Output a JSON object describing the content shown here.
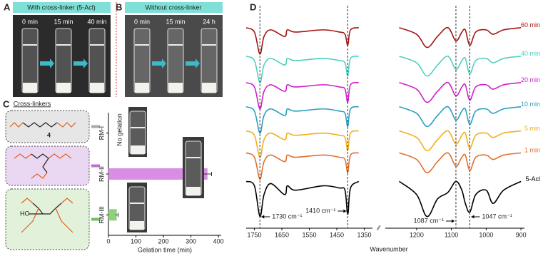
{
  "panels": {
    "A": {
      "label": "A",
      "banner": "With cross-linker (5-Acl)",
      "times": [
        "0 min",
        "15 min",
        "40 min"
      ]
    },
    "B": {
      "label": "B",
      "banner": "Without cross-linker",
      "times": [
        "0 min",
        "15 min",
        "24 h"
      ]
    },
    "C": {
      "label": "C",
      "heading": "Cross-linkers",
      "subscript": "4",
      "hydroxyl": "HO"
    },
    "D": {
      "label": "D",
      "xlabel": "Wavenumber"
    }
  },
  "chart_data": [
    {
      "type": "bar",
      "orientation": "horizontal",
      "categories": [
        "RM-I",
        "RM-II",
        "RM-III"
      ],
      "values": [
        null,
        360,
        30
      ],
      "errors": [
        null,
        15,
        5
      ],
      "colors": [
        null,
        "#d88ee2",
        "#8fd07a"
      ],
      "annotation": "No gelation",
      "xlabel": "Gelation time (min)",
      "xlim": [
        0,
        410
      ],
      "xticks": [
        0,
        100,
        200,
        300,
        400
      ]
    },
    {
      "type": "line",
      "x": [
        1780,
        1750,
        1730,
        1715,
        1690,
        1640,
        1630,
        1600,
        1500,
        1440,
        1420,
        1410,
        1400,
        1370
      ],
      "xlim": [
        1780,
        1320
      ],
      "xticks": [
        1750,
        1650,
        1550,
        1450,
        1350
      ],
      "ylim": [
        0,
        100
      ],
      "series": [
        {
          "color": "#a31515",
          "values": [
            90,
            88,
            78,
            86,
            89,
            86,
            89,
            88,
            89,
            88,
            87,
            82,
            89,
            90
          ]
        },
        {
          "color": "#4fd0c0",
          "values": [
            77,
            75,
            65,
            73,
            76,
            73,
            76,
            75,
            76,
            75,
            74,
            68,
            76,
            77
          ]
        },
        {
          "color": "#d020c8",
          "values": [
            65,
            63,
            53,
            61,
            64,
            61,
            64,
            63,
            64,
            63,
            62,
            56,
            64,
            65
          ]
        },
        {
          "color": "#2aa0c0",
          "values": [
            54,
            52,
            42,
            50,
            53,
            50,
            53,
            52,
            53,
            52,
            51,
            45,
            53,
            54
          ]
        },
        {
          "color": "#f0b020",
          "values": [
            43,
            41,
            31,
            39,
            42,
            39,
            42,
            41,
            42,
            41,
            40,
            34,
            42,
            43
          ]
        },
        {
          "color": "#e07030",
          "values": [
            33,
            31,
            21,
            29,
            32,
            29,
            32,
            31,
            32,
            31,
            30,
            24,
            32,
            33
          ]
        },
        {
          "color": "#000000",
          "values": [
            20,
            18,
            4,
            14,
            19,
            14,
            18,
            16,
            18,
            17,
            16,
            5,
            17,
            20
          ]
        }
      ],
      "annotations": [
        {
          "x": 1730,
          "label": "1730 cm⁻¹"
        },
        {
          "x": 1410,
          "label": "1410 cm⁻¹"
        }
      ]
    },
    {
      "type": "line",
      "x": [
        1250,
        1200,
        1170,
        1140,
        1110,
        1087,
        1070,
        1060,
        1047,
        1030,
        1000,
        980,
        950,
        900
      ],
      "xlim": [
        1290,
        890
      ],
      "xticks": [
        1200,
        1100,
        1000,
        900
      ],
      "ylim": [
        0,
        100
      ],
      "series": [
        {
          "name": "60 min",
          "color": "#a31515",
          "values": [
            90,
            87,
            81,
            86,
            90,
            84,
            88,
            89,
            82,
            88,
            89,
            87,
            89,
            90
          ]
        },
        {
          "name": "40 min",
          "color": "#4fd0c0",
          "values": [
            77,
            74,
            68,
            73,
            77,
            71,
            75,
            76,
            69,
            75,
            76,
            74,
            76,
            77
          ]
        },
        {
          "name": "20 min",
          "color": "#d020c8",
          "values": [
            65,
            62,
            56,
            61,
            65,
            59,
            63,
            64,
            57,
            63,
            64,
            62,
            64,
            65
          ]
        },
        {
          "name": "10 min",
          "color": "#2aa0c0",
          "values": [
            54,
            51,
            45,
            50,
            54,
            48,
            52,
            53,
            46,
            52,
            53,
            51,
            53,
            54
          ]
        },
        {
          "name": "5 min",
          "color": "#f0b020",
          "values": [
            43,
            40,
            34,
            39,
            43,
            37,
            41,
            42,
            35,
            41,
            42,
            40,
            42,
            43
          ]
        },
        {
          "name": "1 min",
          "color": "#e07030",
          "values": [
            33,
            30,
            24,
            29,
            33,
            27,
            31,
            32,
            25,
            31,
            32,
            30,
            32,
            33
          ]
        },
        {
          "name": "5-Acl",
          "color": "#000000",
          "values": [
            20,
            14,
            4,
            12,
            15,
            20,
            16,
            10,
            6,
            14,
            16,
            10,
            16,
            20
          ]
        }
      ],
      "annotations": [
        {
          "x": 1087,
          "label": "1087 cm⁻¹"
        },
        {
          "x": 1047,
          "label": "1047 cm⁻¹"
        }
      ]
    }
  ]
}
